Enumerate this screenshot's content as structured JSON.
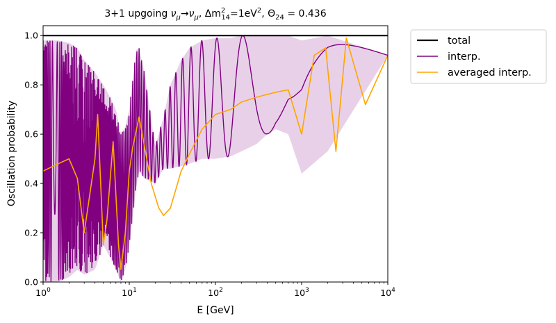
{
  "chart_data": {
    "type": "line",
    "title": "3+1 upgoing ν_μ→ν_μ, Δm²₁₄=1eV², Θ₂₄ = 0.436",
    "title_parts": {
      "prefix": "3+1 upgoing ",
      "nu": "ν",
      "mu_sub": "μ",
      "arrow": "→",
      "dm": ", Δm",
      "dm_sup": "2",
      "dm_sub": "14",
      "ev": "=1eV",
      "ev_sup": "2",
      "theta": ", Θ",
      "theta_sub": "24",
      "theta_val": " = 0.436"
    },
    "xlabel": "E [GeV]",
    "ylabel": "Oscillation probability",
    "xscale": "log",
    "xlim": [
      1,
      10000
    ],
    "ylim": [
      0,
      1.04
    ],
    "x_ticks": [
      {
        "value": 1,
        "base": "10",
        "exp": "0"
      },
      {
        "value": 10,
        "base": "10",
        "exp": "1"
      },
      {
        "value": 100,
        "base": "10",
        "exp": "2"
      },
      {
        "value": 1000,
        "base": "10",
        "exp": "3"
      },
      {
        "value": 10000,
        "base": "10",
        "exp": "4"
      }
    ],
    "y_ticks": [
      {
        "value": 0,
        "label": "0.0"
      },
      {
        "value": 0.2,
        "label": "0.2"
      },
      {
        "value": 0.4,
        "label": "0.4"
      },
      {
        "value": 0.6,
        "label": "0.6"
      },
      {
        "value": 0.8,
        "label": "0.8"
      },
      {
        "value": 1.0,
        "label": "1.0"
      }
    ],
    "legend_position": "outside upper right",
    "series": [
      {
        "name": "total",
        "color": "#000000",
        "x": [
          1,
          10000
        ],
        "y": [
          1.0,
          1.0
        ]
      },
      {
        "name": "interp.",
        "color": "#800080",
        "rendering": "band between lower and upper oscillation envelope (fast oscillation filling region)",
        "x": [
          1,
          1.5,
          2,
          2.5,
          3,
          4,
          5,
          6,
          7,
          8,
          9,
          10,
          12,
          13,
          15,
          20,
          25,
          30,
          40,
          50,
          70,
          100,
          150,
          200,
          300,
          400,
          500,
          700,
          1000,
          2000,
          10000
        ],
        "lower": [
          0.0,
          0.0,
          0.02,
          0.05,
          0.03,
          0.05,
          0.15,
          0.1,
          0.05,
          0.0,
          0.05,
          0.15,
          0.38,
          0.45,
          0.42,
          0.4,
          0.46,
          0.46,
          0.47,
          0.48,
          0.5,
          0.5,
          0.51,
          0.53,
          0.56,
          0.6,
          0.62,
          0.6,
          0.44,
          0.53,
          0.92
        ],
        "upper": [
          0.98,
          0.98,
          0.97,
          0.95,
          0.9,
          0.85,
          0.8,
          0.75,
          0.7,
          0.6,
          0.63,
          0.7,
          0.94,
          0.95,
          0.85,
          0.55,
          0.67,
          0.8,
          0.9,
          0.95,
          0.98,
          0.99,
          0.99,
          1.0,
          1.0,
          1.0,
          1.0,
          1.0,
          0.98,
          1.0,
          0.92
        ]
      },
      {
        "name": "averaged interp.",
        "color": "#FFA500",
        "x": [
          1,
          1.5,
          2,
          2.5,
          3,
          4,
          4.3,
          5,
          5.5,
          6.5,
          7.5,
          8,
          9,
          10,
          11,
          13,
          15,
          18,
          22,
          25,
          30,
          40,
          50,
          70,
          100,
          150,
          200,
          300,
          500,
          700,
          1000,
          1400,
          1900,
          2500,
          3300,
          5500,
          10000
        ],
        "y": [
          0.45,
          0.48,
          0.5,
          0.42,
          0.2,
          0.5,
          0.68,
          0.15,
          0.25,
          0.57,
          0.15,
          0.05,
          0.2,
          0.45,
          0.55,
          0.67,
          0.55,
          0.4,
          0.3,
          0.27,
          0.3,
          0.45,
          0.52,
          0.62,
          0.68,
          0.7,
          0.73,
          0.75,
          0.77,
          0.78,
          0.6,
          0.92,
          0.95,
          0.53,
          0.99,
          0.72,
          0.92
        ]
      }
    ],
    "legend": [
      {
        "name": "total",
        "color": "#000000"
      },
      {
        "name": "interp.",
        "color": "#800080"
      },
      {
        "name": "averaged interp.",
        "color": "#FFA500"
      }
    ]
  }
}
